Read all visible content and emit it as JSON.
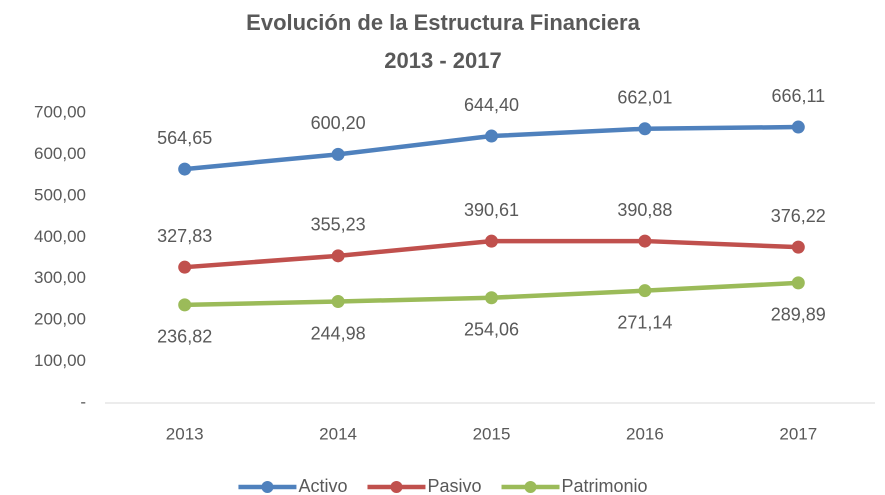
{
  "chart_data": {
    "type": "line",
    "title": "Evolución de la Estructura Financiera",
    "subtitle": "2013 - 2017",
    "categories": [
      "2013",
      "2014",
      "2015",
      "2016",
      "2017"
    ],
    "series": [
      {
        "name": "Activo",
        "color": "#4f81bd",
        "values": [
          564.65,
          600.2,
          644.4,
          662.01,
          666.11
        ],
        "value_labels": [
          "564,65",
          "600,20",
          "644,40",
          "662,01",
          "666,11"
        ],
        "label_position": "above"
      },
      {
        "name": "Pasivo",
        "color": "#c0504d",
        "values": [
          327.83,
          355.23,
          390.61,
          390.88,
          376.22
        ],
        "value_labels": [
          "327,83",
          "355,23",
          "390,61",
          "390,88",
          "376,22"
        ],
        "label_position": "above"
      },
      {
        "name": "Patrimonio",
        "color": "#9bbb59",
        "values": [
          236.82,
          244.98,
          254.06,
          271.14,
          289.89
        ],
        "value_labels": [
          "236,82",
          "244,98",
          "254,06",
          "271,14",
          "289,89"
        ],
        "label_position": "below"
      }
    ],
    "ylim": [
      0,
      700
    ],
    "yticks": [
      {
        "value": 0,
        "label": "-"
      },
      {
        "value": 100,
        "label": "100,00"
      },
      {
        "value": 200,
        "label": "200,00"
      },
      {
        "value": 300,
        "label": "300,00"
      },
      {
        "value": 400,
        "label": "400,00"
      },
      {
        "value": 500,
        "label": "500,00"
      },
      {
        "value": 600,
        "label": "600,00"
      },
      {
        "value": 700,
        "label": "700,00"
      }
    ],
    "grid": false,
    "legend": "bottom"
  }
}
